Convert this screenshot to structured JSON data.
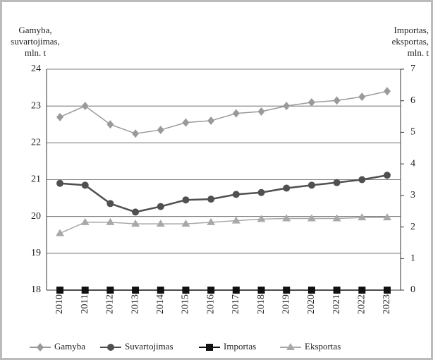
{
  "chart_data": {
    "type": "line",
    "y_label": [
      "Gamyba,",
      "suvartojimas,",
      "mln. t"
    ],
    "y2_label": [
      "Importas,",
      "eksportas,",
      "mln. t"
    ],
    "categories": [
      "2010",
      "2011",
      "2012",
      "2013",
      "2014",
      "2015",
      "2016",
      "2017",
      "2018",
      "2019",
      "2020",
      "2021",
      "2022",
      "2023"
    ],
    "ylim": [
      18,
      24
    ],
    "yticks": [
      18,
      19,
      20,
      21,
      22,
      23,
      24
    ],
    "y2lim": [
      0,
      7
    ],
    "y2ticks": [
      0,
      1,
      2,
      3,
      4,
      5,
      6,
      7
    ],
    "grid": true,
    "legend": "bottom",
    "series": [
      {
        "name": "Gamyba",
        "color": "#9a9a9a",
        "marker": "diamond",
        "values": [
          22.7,
          23.0,
          22.5,
          22.25,
          22.35,
          22.55,
          22.6,
          22.8,
          22.85,
          23.0,
          23.1,
          23.15,
          23.25,
          23.4
        ]
      },
      {
        "name": "Suvartojimas",
        "color": "#505050",
        "marker": "circle",
        "values": [
          20.9,
          20.85,
          20.35,
          20.12,
          20.27,
          20.45,
          20.47,
          20.6,
          20.65,
          20.77,
          20.85,
          20.92,
          21.0,
          21.12
        ]
      },
      {
        "name": "Importas",
        "color": "#111111",
        "marker": "square",
        "axis": "y2",
        "values": [
          0,
          0,
          0,
          0,
          0,
          0,
          0,
          0,
          0,
          0,
          0,
          0,
          0,
          0
        ]
      },
      {
        "name": "Eksportas",
        "color": "#a8a8a8",
        "marker": "triangle",
        "axis": "y2",
        "values": [
          1.8,
          2.15,
          2.15,
          2.1,
          2.1,
          2.1,
          2.15,
          2.2,
          2.25,
          2.27,
          2.27,
          2.27,
          2.3,
          2.3
        ]
      }
    ]
  }
}
